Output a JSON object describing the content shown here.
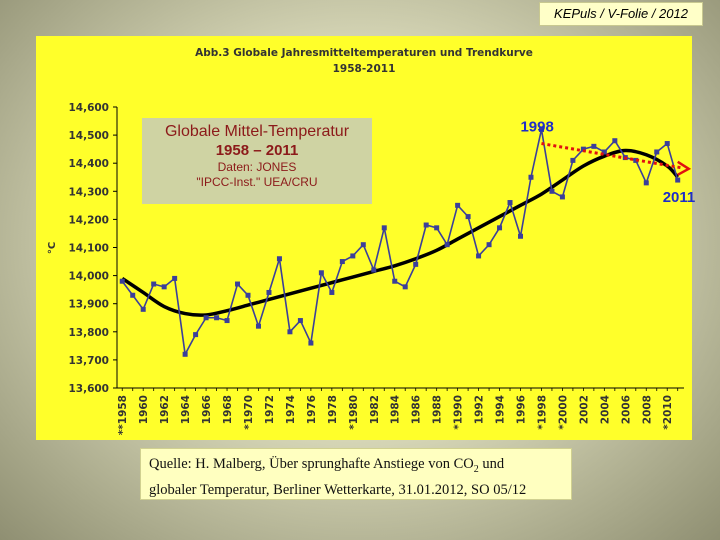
{
  "header_badge": "KEPuls / V-Folie / 2012",
  "chart_title_line1": "Abb.3 Globale Jahresmitteltemperaturen und Trendkurve",
  "chart_title_line2": "1958-2011",
  "legend": {
    "line1": "Globale Mittel-Temperatur",
    "line2": "1958 – 2011",
    "line3": "Daten:  JONES",
    "line4": "\"IPCC-Inst.\" UEA/CRU"
  },
  "annotations": {
    "peak_label": "1998",
    "end_label": "2011"
  },
  "source": {
    "line1_pre": "Quelle: H. Malberg, Über sprunghafte Anstiege von CO",
    "line1_sub": "2",
    "line1_post": " und",
    "line2": "globaler Temperatur, Berliner Wetterkarte, 31.01.2012, SO 05/12"
  },
  "colors": {
    "panel": "#ffff2a",
    "series": "#3b3f9a",
    "trend": "#000000",
    "arrow": "#e01010",
    "annotation": "#1e2ec8"
  },
  "chart_data": {
    "type": "line",
    "title": "Abb.3 Globale Jahresmitteltemperaturen und Trendkurve 1958-2011",
    "xlabel": "",
    "ylabel": "°C",
    "ylim": [
      13.6,
      14.6
    ],
    "xlim": [
      1958,
      2011
    ],
    "y_ticks": [
      "14,600",
      "14,500",
      "14,400",
      "14,300",
      "14,200",
      "14,100",
      "14,000",
      "13,900",
      "13,800",
      "13,700",
      "13,600"
    ],
    "y_tick_values": [
      14.6,
      14.5,
      14.4,
      14.3,
      14.2,
      14.1,
      14.0,
      13.9,
      13.8,
      13.7,
      13.6
    ],
    "x_tick_labels": [
      "**1958",
      "1960",
      "1962",
      "1964",
      "1966",
      "1968",
      "*1970",
      "1972",
      "1974",
      "1976",
      "1978",
      "*1980",
      "1982",
      "1984",
      "1986",
      "1988",
      "*1990",
      "1992",
      "1994",
      "1996",
      "*1998",
      "*2000",
      "2002",
      "2004",
      "2006",
      "2008",
      "*2010"
    ],
    "x_tick_values": [
      1958,
      1960,
      1962,
      1964,
      1966,
      1968,
      1970,
      1972,
      1974,
      1976,
      1978,
      1980,
      1982,
      1984,
      1986,
      1988,
      1990,
      1992,
      1994,
      1996,
      1998,
      2000,
      2002,
      2004,
      2006,
      2008,
      2010
    ],
    "grid": false,
    "legend_position": "top-left",
    "series": [
      {
        "name": "Globale Mittel-Temperatur",
        "x": [
          1958,
          1959,
          1960,
          1961,
          1962,
          1963,
          1964,
          1965,
          1966,
          1967,
          1968,
          1969,
          1970,
          1971,
          1972,
          1973,
          1974,
          1975,
          1976,
          1977,
          1978,
          1979,
          1980,
          1981,
          1982,
          1983,
          1984,
          1985,
          1986,
          1987,
          1988,
          1989,
          1990,
          1991,
          1992,
          1993,
          1994,
          1995,
          1996,
          1997,
          1998,
          1999,
          2000,
          2001,
          2002,
          2003,
          2004,
          2005,
          2006,
          2007,
          2008,
          2009,
          2010,
          2011
        ],
        "values": [
          13.98,
          13.93,
          13.88,
          13.97,
          13.96,
          13.99,
          13.72,
          13.79,
          13.85,
          13.85,
          13.84,
          13.97,
          13.93,
          13.82,
          13.94,
          14.06,
          13.8,
          13.84,
          13.76,
          14.01,
          13.94,
          14.05,
          14.07,
          14.11,
          14.02,
          14.17,
          13.98,
          13.96,
          14.04,
          14.18,
          14.17,
          14.11,
          14.25,
          14.21,
          14.07,
          14.11,
          14.17,
          14.26,
          14.14,
          14.35,
          14.52,
          14.3,
          14.28,
          14.41,
          14.45,
          14.46,
          14.44,
          14.48,
          14.42,
          14.41,
          14.33,
          14.44,
          14.47,
          14.34
        ]
      },
      {
        "name": "",
        "x": [
          1958,
          1960,
          1962,
          1964,
          1966,
          1968,
          1970,
          1972,
          1974,
          1976,
          1978,
          1980,
          1982,
          1984,
          1986,
          1988,
          1990,
          1992,
          1994,
          1996,
          1998,
          2000,
          2002,
          2004,
          2006,
          2008,
          2010,
          2011
        ],
        "values": [
          13.99,
          13.94,
          13.89,
          13.865,
          13.86,
          13.875,
          13.895,
          13.915,
          13.935,
          13.955,
          13.975,
          13.995,
          14.015,
          14.035,
          14.06,
          14.09,
          14.13,
          14.17,
          14.21,
          14.25,
          14.29,
          14.34,
          14.39,
          14.425,
          14.445,
          14.43,
          14.39,
          14.35
        ]
      },
      {
        "name": "",
        "x": [
          1998,
          2011
        ],
        "values": [
          14.47,
          14.38
        ]
      }
    ]
  }
}
